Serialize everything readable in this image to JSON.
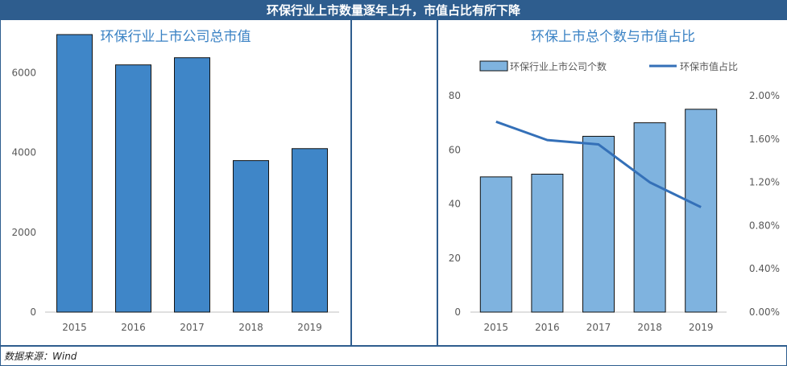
{
  "header": {
    "title": "环保行业上市数量逐年上升，市值占比有所下降"
  },
  "footer": {
    "source": "数据来源：Wind"
  },
  "colors": {
    "frame": "#2e5d8e",
    "left_bar": "#3f86c8",
    "right_bar": "#7fb3df",
    "line": "#3470b8",
    "title_text": "#3a82c4",
    "axis_text": "#595959",
    "grid": "#d9d9d9"
  },
  "chart_data": [
    {
      "type": "bar",
      "title": "环保行业上市公司总市值",
      "categories": [
        "2015",
        "2016",
        "2017",
        "2018",
        "2019"
      ],
      "values": [
        6960,
        6200,
        6380,
        3800,
        4100
      ],
      "ylim": [
        0,
        7000
      ],
      "yticks": [
        "0",
        "2000",
        "4000",
        "6000"
      ],
      "grid": false
    },
    {
      "type": "bar+line",
      "title": "环保上市总个数与市值占比",
      "categories": [
        "2015",
        "2016",
        "2017",
        "2018",
        "2019"
      ],
      "series": [
        {
          "name": "环保行业上市公司个数",
          "type": "bar",
          "axis": "left",
          "values": [
            50,
            51,
            65,
            70,
            75
          ]
        },
        {
          "name": "环保市值占比",
          "type": "line",
          "axis": "right",
          "values": [
            1.76,
            1.59,
            1.55,
            1.2,
            0.97
          ]
        }
      ],
      "ylim_left": [
        0,
        80
      ],
      "ylim_right": [
        0,
        2.0
      ],
      "yticks_left": [
        "0",
        "20",
        "40",
        "60",
        "80"
      ],
      "yticks_right": [
        "0.00%",
        "0.40%",
        "0.80%",
        "1.20%",
        "1.60%",
        "2.00%"
      ],
      "legend": "top",
      "grid": false
    }
  ]
}
